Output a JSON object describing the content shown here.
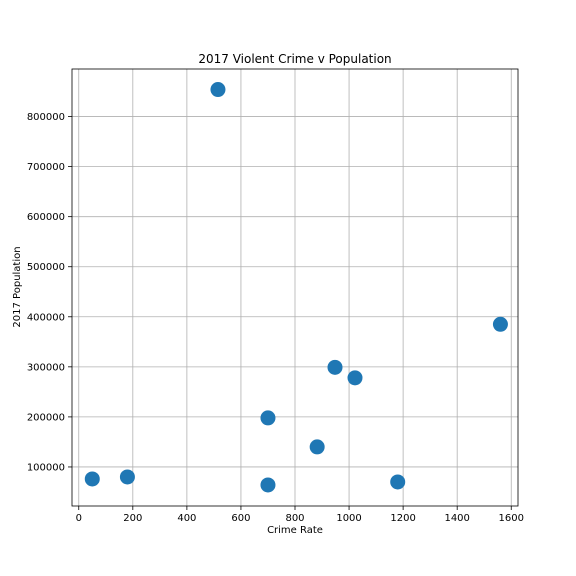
{
  "chart_data": {
    "type": "scatter",
    "title": "2017 Violent Crime v Population",
    "xlabel": "Crime Rate",
    "ylabel": "2017 Population",
    "xlim": [
      -25,
      1625
    ],
    "ylim": [
      22000,
      895000
    ],
    "xticks": [
      0,
      200,
      400,
      600,
      800,
      1000,
      1200,
      1400,
      1600
    ],
    "yticks": [
      100000,
      200000,
      300000,
      400000,
      500000,
      600000,
      700000,
      800000
    ],
    "grid": true,
    "color": "#1f77b4",
    "points": [
      {
        "x": 50,
        "y": 76000
      },
      {
        "x": 180,
        "y": 80000
      },
      {
        "x": 515,
        "y": 854000
      },
      {
        "x": 700,
        "y": 198000
      },
      {
        "x": 700,
        "y": 64000
      },
      {
        "x": 882,
        "y": 140000
      },
      {
        "x": 948,
        "y": 299000
      },
      {
        "x": 1022,
        "y": 278000
      },
      {
        "x": 1180,
        "y": 70000
      },
      {
        "x": 1560,
        "y": 385000
      }
    ]
  }
}
